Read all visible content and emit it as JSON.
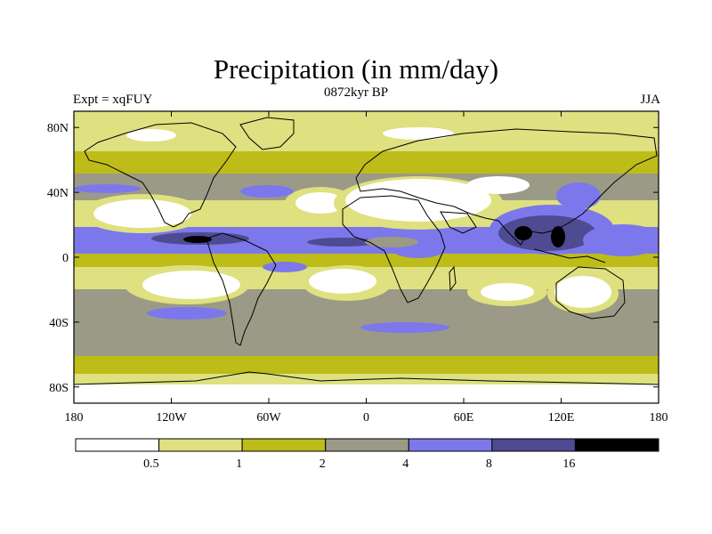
{
  "title": "Precipitation (in mm/day)",
  "subtitle": "0872kyr BP",
  "experiment": "Expt = xqFUY",
  "season": "JJA",
  "colors": {
    "c0": "#ffffff",
    "c1": "#dfe07f",
    "c2": "#bdbc18",
    "c3": "#9b9a87",
    "c4": "#7c78eb",
    "c5": "#4e4b92",
    "c6": "#000000",
    "land_outline": "#000000"
  },
  "chart_data": {
    "type": "heatmap",
    "x_ticks": [
      {
        "value": -180,
        "label": "180"
      },
      {
        "value": -120,
        "label": "120W"
      },
      {
        "value": -60,
        "label": "60W"
      },
      {
        "value": 0,
        "label": "0"
      },
      {
        "value": 60,
        "label": "60E"
      },
      {
        "value": 120,
        "label": "120E"
      },
      {
        "value": 180,
        "label": "180"
      }
    ],
    "y_ticks": [
      {
        "value": 80,
        "label": "80N"
      },
      {
        "value": 40,
        "label": "40N"
      },
      {
        "value": 0,
        "label": "0"
      },
      {
        "value": -40,
        "label": "40S"
      },
      {
        "value": -80,
        "label": "80S"
      }
    ],
    "xlim": [
      -180,
      180
    ],
    "ylim": [
      -90,
      90
    ],
    "colorbar": {
      "levels": [
        0.5,
        1,
        2,
        4,
        8,
        16
      ],
      "labels": [
        "0.5",
        "1",
        "2",
        "4",
        "8",
        "16"
      ]
    },
    "precip_by_latitude": [
      {
        "lat": 85,
        "value": 0.6
      },
      {
        "lat": 70,
        "value": 1.2
      },
      {
        "lat": 55,
        "value": 1.6
      },
      {
        "lat": 40,
        "value": 2.5
      },
      {
        "lat": 25,
        "value": 0.4
      },
      {
        "lat": 10,
        "value": 5.0
      },
      {
        "lat": 0,
        "value": 3.0
      },
      {
        "lat": -15,
        "value": 0.8
      },
      {
        "lat": -40,
        "value": 3.0
      },
      {
        "lat": -55,
        "value": 2.5
      },
      {
        "lat": -65,
        "value": 1.2
      },
      {
        "lat": -80,
        "value": 0.3
      }
    ]
  }
}
